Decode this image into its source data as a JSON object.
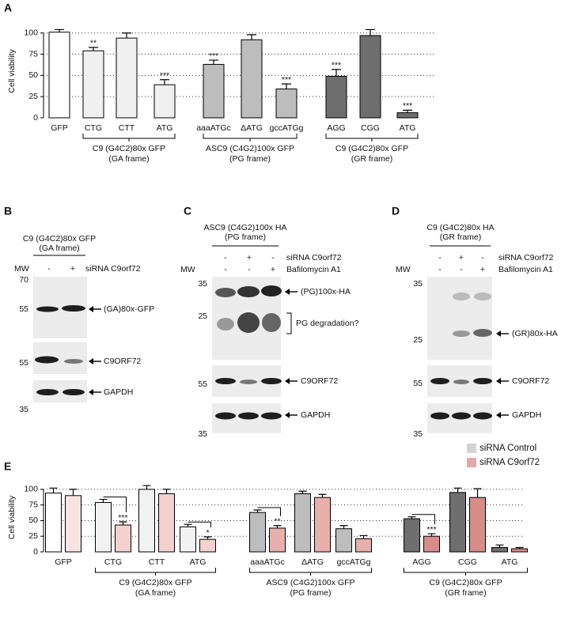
{
  "charts_data_note_free": null,
  "chart_data": [
    {
      "type": "bar",
      "label": "A",
      "ylabel": "Cell viability",
      "categories": [
        "GFP",
        "CTG",
        "CTT",
        "ATG",
        "aaaATGc",
        "ΔATG",
        "gccATGg",
        "AGG",
        "CGG",
        "ATG"
      ],
      "values": [
        101,
        79,
        94,
        39,
        63,
        92,
        34,
        49,
        97,
        6
      ],
      "errors": [
        3,
        4,
        6,
        6,
        5,
        6,
        6,
        8,
        7,
        3
      ],
      "annotations": [
        null,
        "**",
        null,
        "***",
        "***",
        null,
        "***",
        "***",
        null,
        "***"
      ],
      "colors": [
        "#ffffff",
        "#f0f0f0",
        "#f0f0f0",
        "#f0f0f0",
        "#bdbdbd",
        "#bdbdbd",
        "#bdbdbd",
        "#6e6e6e",
        "#6e6e6e",
        "#6e6e6e"
      ],
      "groups": [
        {
          "name": "C9 (G4C2)80x GFP",
          "subtitle": "(GA frame)"
        },
        {
          "name": "ASC9 (C4G2)100x GFP",
          "subtitle": "(PG frame)"
        },
        {
          "name": "C9 (G4C2)80x GFP",
          "subtitle": "(GR frame)"
        }
      ],
      "ylim": [
        0,
        110
      ],
      "yticks": [
        0,
        25,
        50,
        75,
        100
      ],
      "grid": true
    },
    {
      "type": "grouped_bar",
      "label": "E",
      "ylabel": "Cell viability",
      "categories": [
        "GFP",
        "CTG",
        "CTT",
        "ATG",
        "aaaATGc",
        "ΔATG",
        "gccATGg",
        "AGG",
        "CGG",
        "ATG"
      ],
      "series": [
        {
          "name": "siRNA Control",
          "color": "#d3d3d3",
          "colors": [
            "#ffffff",
            "#f2f2f2",
            "#f2f2f2",
            "#f2f2f2",
            "#bdbdbd",
            "#bdbdbd",
            "#bdbdbd",
            "#6e6e6e",
            "#6e6e6e",
            "#6e6e6e"
          ],
          "values": [
            94,
            79,
            100,
            40,
            63,
            93,
            37,
            53,
            95,
            7
          ],
          "errors": [
            8,
            5,
            6,
            4,
            4,
            4,
            5,
            3,
            7,
            4
          ]
        },
        {
          "name": "siRNA C9orf72",
          "color": "#e3a9a6",
          "colors": [
            "#f7e3e2",
            "#f4d0ce",
            "#f4d0ce",
            "#f4d0ce",
            "#e8b0ad",
            "#e8b0ad",
            "#e8b0ad",
            "#d88c88",
            "#d88c88",
            "#d88c88"
          ],
          "values": [
            90,
            43,
            93,
            20,
            38,
            87,
            21,
            25,
            87,
            5
          ],
          "errors": [
            10,
            5,
            7,
            4,
            4,
            5,
            5,
            4,
            14,
            2
          ]
        }
      ],
      "annotations": [
        null,
        "***",
        null,
        "*",
        "**",
        null,
        null,
        "***",
        null,
        null
      ],
      "groups": [
        {
          "name": "C9 (G4C2)80x GFP",
          "subtitle": "(GA frame)"
        },
        {
          "name": "ASC9 (C4G2)100x GFP",
          "subtitle": "(PG frame)"
        },
        {
          "name": "C9 (G4C2)80x GFP",
          "subtitle": "(GR frame)"
        }
      ],
      "legend": "top-right",
      "ylim": [
        0,
        110
      ],
      "yticks": [
        0,
        25,
        50,
        75,
        100
      ],
      "grid": true
    }
  ],
  "blots": [
    {
      "label": "B",
      "title": [
        "C9 (G4C2)80x GFP",
        "(GA frame)"
      ],
      "mw_label": "MW",
      "rows": [
        {
          "name": "siRNA C9orf72",
          "marks": [
            "-",
            "+"
          ]
        }
      ],
      "mw": [
        70,
        55,
        55,
        35
      ],
      "bands": [
        "(GA)80x-GFP",
        "C9ORF72",
        "GAPDH"
      ]
    },
    {
      "label": "C",
      "title": [
        "ASC9 (C4G2)100x HA",
        "(PG frame)"
      ],
      "mw_label": "MW",
      "rows": [
        {
          "name": "siRNA C9orf72",
          "marks": [
            "-",
            "+",
            "-"
          ]
        },
        {
          "name": "Bafilomycin A1",
          "marks": [
            "-",
            "-",
            "+"
          ]
        }
      ],
      "mw": [
        35,
        25,
        55,
        35
      ],
      "bands": [
        "(PG)100x-HA",
        "C9ORF72",
        "GAPDH"
      ],
      "annotation": "PG degradation?"
    },
    {
      "label": "D",
      "title": [
        "C9 (G4C2)80x HA",
        "(GR frame)"
      ],
      "mw_label": "MW",
      "rows": [
        {
          "name": "siRNA C9orf72",
          "marks": [
            "-",
            "+",
            "-"
          ]
        },
        {
          "name": "Bafilomycin A1",
          "marks": [
            "-",
            "-",
            "+"
          ]
        }
      ],
      "mw": [
        35,
        25,
        55,
        35
      ],
      "bands": [
        "(GR)80x-HA",
        "C9ORF72",
        "GAPDH"
      ]
    }
  ]
}
